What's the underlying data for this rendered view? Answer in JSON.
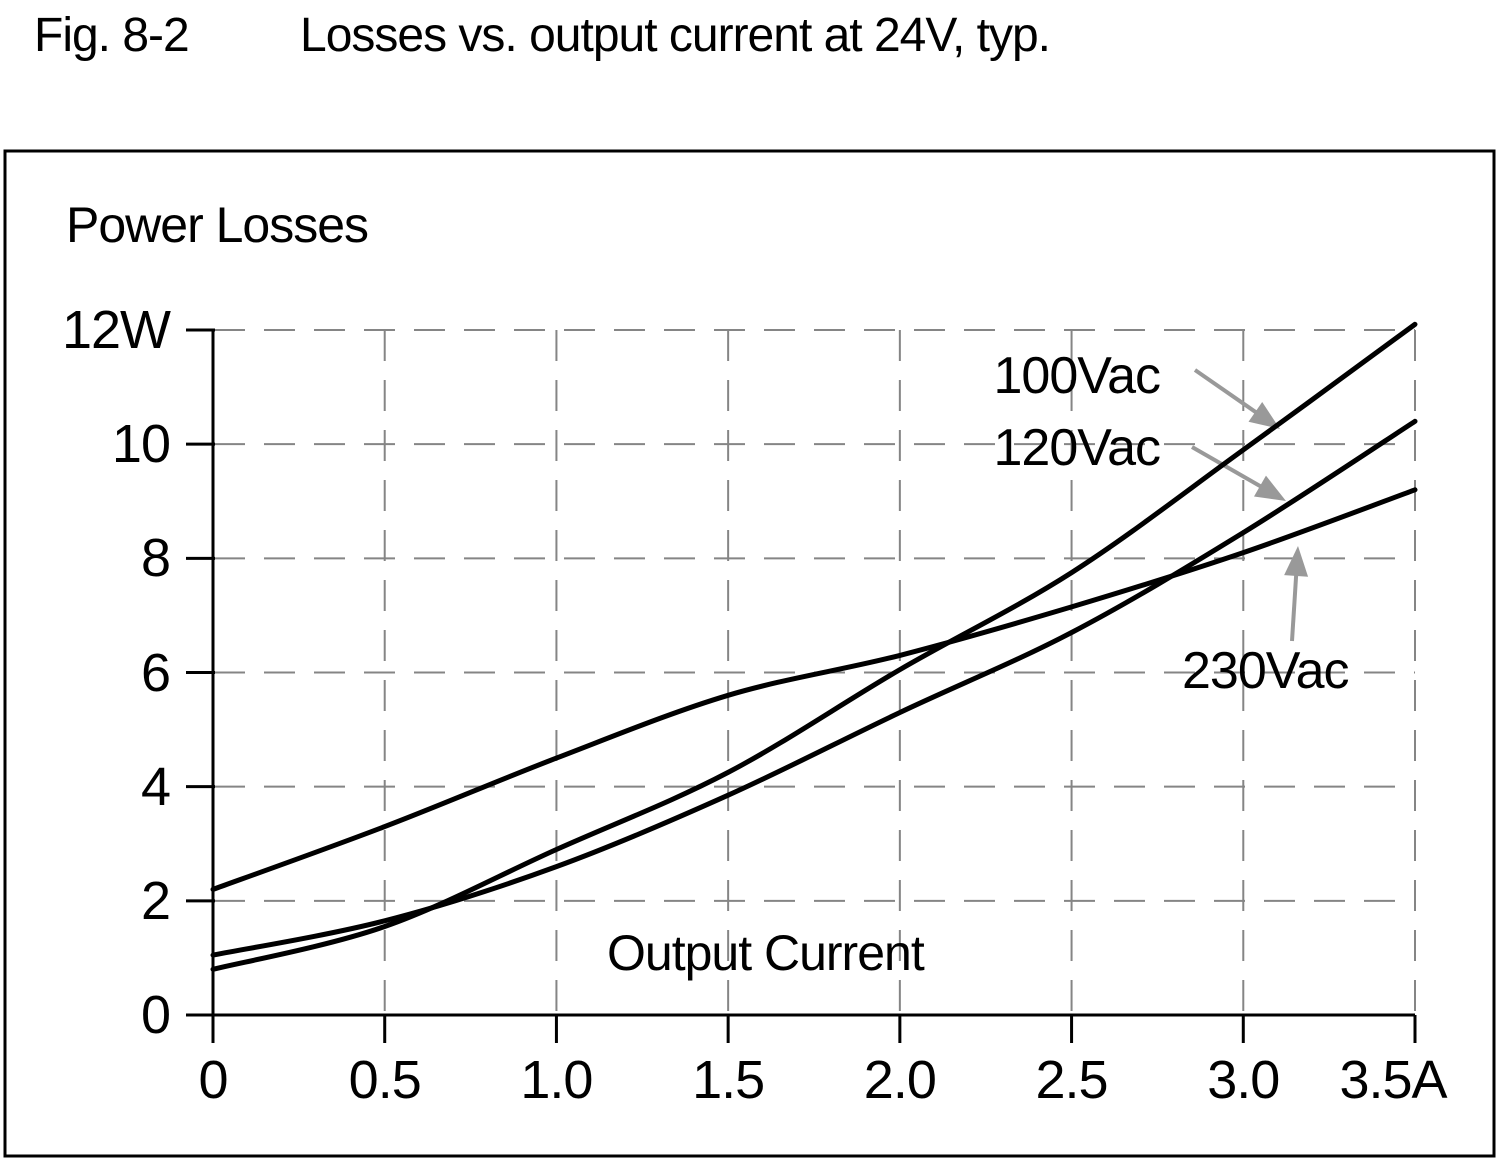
{
  "figure": {
    "fig_label": "Fig. 8-2",
    "title": "Losses vs. output current at 24V, typ."
  },
  "chart_data": {
    "type": "line",
    "title": "Losses vs. output current at 24V, typ.",
    "xlabel": "Output Current",
    "ylabel": "Power Losses",
    "x_unit": "A",
    "y_unit": "W",
    "x": [
      0,
      0.5,
      1.0,
      1.5,
      2.0,
      2.5,
      3.0,
      3.5
    ],
    "series": [
      {
        "name": "100Vac",
        "values": [
          0.8,
          1.55,
          2.9,
          4.25,
          6.05,
          7.75,
          9.9,
          12.1
        ]
      },
      {
        "name": "120Vac",
        "values": [
          1.05,
          1.65,
          2.6,
          3.85,
          5.3,
          6.7,
          8.45,
          10.4
        ]
      },
      {
        "name": "230Vac",
        "values": [
          2.2,
          3.3,
          4.5,
          5.6,
          6.3,
          7.15,
          8.1,
          9.2
        ]
      }
    ],
    "xlim": [
      0,
      3.5
    ],
    "ylim": [
      0,
      12
    ],
    "x_tick_labels": [
      "0",
      "0.5",
      "1.0",
      "1.5",
      "2.0",
      "2.5",
      "3.0",
      "3.5A"
    ],
    "y_tick_labels": [
      "0",
      "2",
      "4",
      "6",
      "8",
      "10",
      "12W"
    ],
    "grid": true,
    "legend_position": "inline-annotations",
    "annotations": [
      {
        "label": "100Vac"
      },
      {
        "label": "120Vac"
      },
      {
        "label": "230Vac"
      }
    ]
  },
  "colors": {
    "curve": "#000000",
    "grid": "#858585",
    "axis": "#000000",
    "arrow": "#999999",
    "text": "#000000",
    "background": "#ffffff"
  }
}
